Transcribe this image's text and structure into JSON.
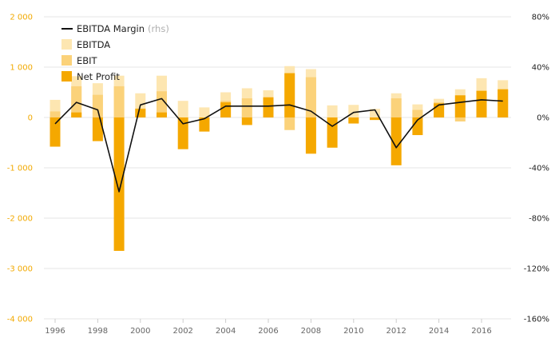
{
  "chart_data": {
    "type": "bar",
    "x": [
      1996,
      1997,
      1998,
      1999,
      2000,
      2001,
      2002,
      2003,
      2004,
      2005,
      2006,
      2007,
      2008,
      2009,
      2010,
      2011,
      2012,
      2013,
      2014,
      2015,
      2016,
      2017
    ],
    "x_ticks": [
      "1996",
      "1998",
      "2000",
      "2002",
      "2004",
      "2006",
      "2008",
      "2010",
      "2012",
      "2014",
      "2016"
    ],
    "y_left": {
      "ylim": [
        -4000,
        2000
      ],
      "ticks": [
        2000,
        1000,
        0,
        -1000,
        -2000,
        -3000,
        -4000
      ],
      "tick_labels": [
        "2 000",
        "1 000",
        "0",
        "-1 000",
        "-2 000",
        "-3 000",
        "-4 000"
      ]
    },
    "y_right": {
      "ylim": [
        -1.6,
        0.8
      ],
      "ticks": [
        0.8,
        0.4,
        0,
        -0.4,
        -0.8,
        -1.2,
        -1.6
      ],
      "tick_labels": [
        "80%",
        "40%",
        "0%",
        "-40%",
        "-80%",
        "-120%",
        "-160%"
      ]
    },
    "grid": true,
    "legend_position": "top-left",
    "series": [
      {
        "name": "EBITDA",
        "type": "bar",
        "color": "#fde6b1",
        "values": [
          350,
          820,
          680,
          830,
          480,
          830,
          330,
          200,
          500,
          580,
          540,
          1020,
          960,
          240,
          250,
          170,
          480,
          260,
          370,
          560,
          780,
          740
        ]
      },
      {
        "name": "EBIT",
        "type": "bar",
        "color": "#fbd27a",
        "values": [
          120,
          620,
          450,
          620,
          180,
          520,
          0,
          0,
          330,
          380,
          400,
          -250,
          800,
          0,
          0,
          0,
          380,
          150,
          300,
          -80,
          480,
          560
        ]
      },
      {
        "name": "Net Profit",
        "type": "bar",
        "color": "#f5a800",
        "values": [
          -580,
          100,
          -470,
          -2650,
          170,
          100,
          -630,
          -280,
          300,
          -150,
          400,
          880,
          -720,
          -600,
          -120,
          -50,
          -950,
          -350,
          280,
          440,
          530,
          560
        ]
      },
      {
        "name": "EBITDA Margin",
        "name_suffix": "(rhs)",
        "type": "line",
        "axis": "right",
        "color": "#111111",
        "values": [
          -0.05,
          0.12,
          0.06,
          -0.59,
          0.1,
          0.15,
          -0.05,
          -0.01,
          0.09,
          0.09,
          0.09,
          0.1,
          0.05,
          -0.07,
          0.04,
          0.06,
          -0.24,
          -0.02,
          0.1,
          0.12,
          0.14,
          0.13
        ]
      }
    ]
  }
}
